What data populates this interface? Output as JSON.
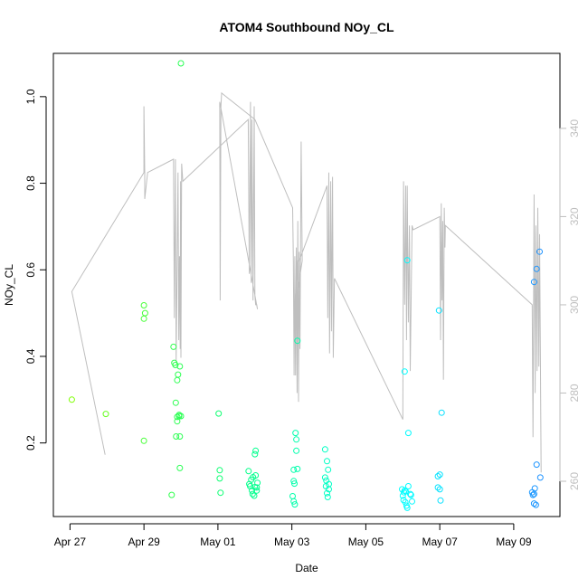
{
  "chart_data": {
    "type": "scatter",
    "title": "ATOM4 Southbound NOy_CL",
    "xlabel": "Date",
    "ylabel": "NOy_CL",
    "x_ticks": [
      "Apr 27",
      "Apr 29",
      "May 01",
      "May 03",
      "May 05",
      "May 07",
      "May 09"
    ],
    "x_tick_days": [
      0,
      2,
      4,
      6,
      8,
      10,
      12
    ],
    "xlim_days": [
      -0.45,
      13.25
    ],
    "y_ticks": [
      "0.2",
      "0.4",
      "0.6",
      "0.8",
      "1.0"
    ],
    "ylim": [
      0.03,
      1.1
    ],
    "y2_ticks": [
      "260",
      "280",
      "300",
      "320",
      "340"
    ],
    "y2lim": [
      252,
      357
    ],
    "colors": {
      "axis": "#000000",
      "secondary": "#bebebe",
      "point_start": "#7fff00",
      "point_mid": "#00ff7f",
      "point_cyan": "#00ffff",
      "point_end": "#1e90ff"
    },
    "points": [
      [
        0.05,
        0.3
      ],
      [
        0.97,
        0.267
      ],
      [
        2.0,
        0.518
      ],
      [
        2.03,
        0.5
      ],
      [
        2.0,
        0.487
      ],
      [
        2.0,
        0.205
      ],
      [
        2.75,
        0.08
      ],
      [
        2.8,
        0.422
      ],
      [
        2.82,
        0.385
      ],
      [
        2.85,
        0.38
      ],
      [
        2.86,
        0.293
      ],
      [
        2.87,
        0.215
      ],
      [
        2.9,
        0.25
      ],
      [
        2.9,
        0.26
      ],
      [
        2.9,
        0.345
      ],
      [
        2.92,
        0.358
      ],
      [
        2.95,
        0.265
      ],
      [
        2.95,
        0.262
      ],
      [
        2.97,
        0.377
      ],
      [
        2.97,
        0.215
      ],
      [
        2.97,
        0.142
      ],
      [
        3.0,
        0.262
      ],
      [
        3.0,
        1.077
      ],
      [
        4.02,
        0.268
      ],
      [
        4.05,
        0.137
      ],
      [
        4.05,
        0.118
      ],
      [
        4.07,
        0.085
      ],
      [
        4.83,
        0.135
      ],
      [
        4.85,
        0.105
      ],
      [
        4.87,
        0.1
      ],
      [
        4.9,
        0.115
      ],
      [
        4.92,
        0.09
      ],
      [
        4.94,
        0.082
      ],
      [
        4.95,
        0.121
      ],
      [
        4.98,
        0.078
      ],
      [
        5.0,
        0.098
      ],
      [
        5.0,
        0.174
      ],
      [
        5.02,
        0.182
      ],
      [
        5.02,
        0.125
      ],
      [
        5.05,
        0.097
      ],
      [
        5.05,
        0.09
      ],
      [
        5.07,
        0.108
      ],
      [
        6.02,
        0.077
      ],
      [
        6.05,
        0.065
      ],
      [
        6.08,
        0.058
      ],
      [
        6.05,
        0.138
      ],
      [
        6.05,
        0.112
      ],
      [
        6.07,
        0.106
      ],
      [
        6.1,
        0.223
      ],
      [
        6.12,
        0.208
      ],
      [
        6.12,
        0.182
      ],
      [
        6.15,
        0.14
      ],
      [
        6.15,
        0.436
      ],
      [
        6.9,
        0.185
      ],
      [
        6.9,
        0.12
      ],
      [
        6.92,
        0.1
      ],
      [
        6.93,
        0.113
      ],
      [
        6.95,
        0.084
      ],
      [
        6.95,
        0.158
      ],
      [
        6.97,
        0.075
      ],
      [
        6.98,
        0.138
      ],
      [
        7.0,
        0.093
      ],
      [
        7.0,
        0.105
      ],
      [
        8.98,
        0.093
      ],
      [
        9.0,
        0.078
      ],
      [
        9.02,
        0.068
      ],
      [
        9.03,
        0.086
      ],
      [
        9.05,
        0.09
      ],
      [
        9.07,
        0.063
      ],
      [
        9.08,
        0.088
      ],
      [
        9.1,
        0.055
      ],
      [
        9.12,
        0.05
      ],
      [
        9.05,
        0.365
      ],
      [
        9.12,
        0.622
      ],
      [
        9.15,
        0.223
      ],
      [
        9.15,
        0.1
      ],
      [
        9.2,
        0.082
      ],
      [
        9.22,
        0.08
      ],
      [
        9.25,
        0.065
      ],
      [
        9.95,
        0.123
      ],
      [
        10.0,
        0.127
      ],
      [
        9.95,
        0.097
      ],
      [
        10.0,
        0.093
      ],
      [
        10.02,
        0.067
      ],
      [
        9.98,
        0.506
      ],
      [
        10.05,
        0.27
      ],
      [
        12.5,
        0.086
      ],
      [
        12.52,
        0.08
      ],
      [
        12.55,
        0.082
      ],
      [
        12.57,
        0.095
      ],
      [
        12.55,
        0.06
      ],
      [
        12.6,
        0.057
      ],
      [
        12.62,
        0.15
      ],
      [
        12.55,
        0.572
      ],
      [
        12.62,
        0.602
      ],
      [
        12.7,
        0.642
      ],
      [
        12.72,
        0.12
      ]
    ],
    "line2": [
      [
        0.05,
        303
      ],
      [
        0.95,
        266
      ],
      [
        0.05,
        303
      ],
      [
        2.0,
        330
      ],
      [
        2.0,
        345
      ],
      [
        2.02,
        330
      ],
      [
        2.02,
        324
      ],
      [
        2.1,
        330
      ],
      [
        2.8,
        333
      ],
      [
        2.82,
        297
      ],
      [
        2.85,
        333
      ],
      [
        2.87,
        287
      ],
      [
        2.92,
        330
      ],
      [
        2.94,
        292
      ],
      [
        2.96,
        311
      ],
      [
        2.98,
        290
      ],
      [
        2.99,
        328
      ],
      [
        3.0,
        288
      ],
      [
        3.02,
        332
      ],
      [
        3.05,
        328
      ],
      [
        4.82,
        342
      ],
      [
        4.85,
        307
      ],
      [
        4.88,
        346
      ],
      [
        4.9,
        305
      ],
      [
        4.92,
        342
      ],
      [
        4.95,
        301
      ],
      [
        4.98,
        345
      ],
      [
        5.0,
        302
      ],
      [
        5.02,
        300
      ],
      [
        5.05,
        300
      ],
      [
        5.07,
        299
      ],
      [
        4.05,
        346
      ],
      [
        4.06,
        301
      ],
      [
        4.08,
        345
      ],
      [
        4.1,
        348
      ],
      [
        5.0,
        342
      ],
      [
        6.02,
        322
      ],
      [
        6.04,
        310
      ],
      [
        6.06,
        284
      ],
      [
        6.08,
        311
      ],
      [
        6.1,
        284
      ],
      [
        6.12,
        313
      ],
      [
        6.14,
        280
      ],
      [
        6.16,
        319
      ],
      [
        6.18,
        278
      ],
      [
        6.2,
        312
      ],
      [
        6.22,
        290
      ],
      [
        6.25,
        337
      ],
      [
        6.28,
        310
      ],
      [
        6.1,
        300
      ],
      [
        6.15,
        310
      ],
      [
        6.2,
        310
      ],
      [
        6.95,
        327
      ],
      [
        6.97,
        297
      ],
      [
        7.0,
        330
      ],
      [
        7.02,
        289
      ],
      [
        7.05,
        328
      ],
      [
        7.07,
        294
      ],
      [
        7.1,
        329
      ],
      [
        7.12,
        288
      ],
      [
        7.15,
        306
      ],
      [
        9.0,
        274
      ],
      [
        9.02,
        328
      ],
      [
        9.05,
        300
      ],
      [
        9.08,
        327
      ],
      [
        9.1,
        292
      ],
      [
        9.12,
        327
      ],
      [
        9.15,
        296
      ],
      [
        9.18,
        318
      ],
      [
        9.2,
        285
      ],
      [
        9.25,
        318
      ],
      [
        9.28,
        317
      ],
      [
        10.0,
        320
      ],
      [
        10.02,
        292
      ],
      [
        10.04,
        323
      ],
      [
        10.06,
        301
      ],
      [
        10.08,
        319
      ],
      [
        10.1,
        283
      ],
      [
        10.12,
        322
      ],
      [
        10.14,
        313
      ],
      [
        10.15,
        318
      ],
      [
        12.5,
        300
      ],
      [
        12.52,
        270
      ],
      [
        12.55,
        325
      ],
      [
        12.58,
        280
      ],
      [
        12.6,
        318
      ],
      [
        12.63,
        285
      ],
      [
        12.65,
        322
      ],
      [
        12.68,
        286
      ],
      [
        12.7,
        316
      ],
      [
        12.72,
        291
      ],
      [
        12.74,
        262
      ]
    ]
  }
}
